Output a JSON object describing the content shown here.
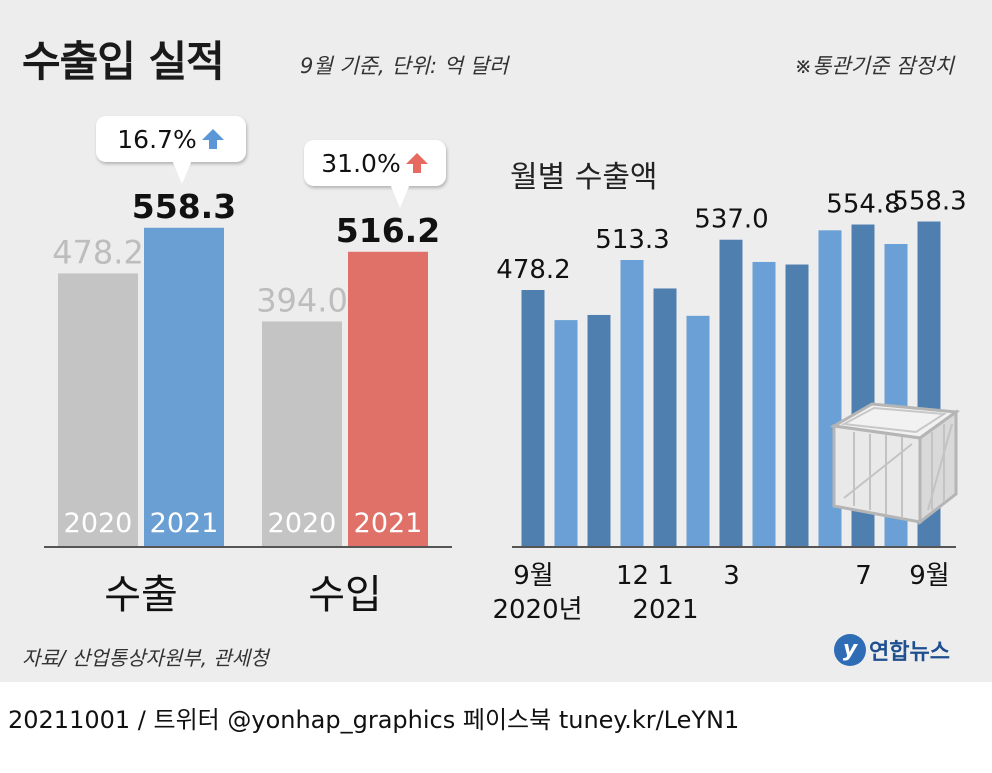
{
  "title": "수출입 실적",
  "subtitle": "9월 기준, 단위: 억 달러",
  "note": "※통관기준 잠정치",
  "source": "자료/ 산업통상자원부, 관세청",
  "footer": "20211001 / 트위터 @yonhap_graphics  페이스북 tuney.kr/LeYN1",
  "brand": {
    "mark": "y",
    "name": "연합뉴스"
  },
  "callouts": {
    "export_change": "16.7%",
    "import_change": "31.0%"
  },
  "colors": {
    "background": "#ededed",
    "prev_year_bar": "#c4c4c4",
    "export_2021": "#6a9fd4",
    "import_2021": "#e07168",
    "monthly_dark": "#4f7fae",
    "monthly_light": "#6aa0d6",
    "up_arrow_blue": "#5b97d8",
    "up_arrow_red": "#e76a60"
  },
  "monthly_title": "월별 수출액",
  "chart_data": [
    {
      "type": "bar",
      "categories": [
        "수출",
        "수입"
      ],
      "series": [
        {
          "name": "2020",
          "values": [
            478.2,
            394.0
          ]
        },
        {
          "name": "2021",
          "values": [
            558.3,
            516.2
          ]
        }
      ],
      "ylim": [
        0,
        600
      ]
    },
    {
      "type": "bar",
      "title": "월별 수출액",
      "categories": [
        "2020-09",
        "2020-10",
        "2020-11",
        "2020-12",
        "2021-01",
        "2021-02",
        "2021-03",
        "2021-04",
        "2021-05",
        "2021-06",
        "2021-07",
        "2021-08",
        "2021-09"
      ],
      "tick_labels": [
        {
          "index": 0,
          "line1": "9월",
          "line2": "2020년"
        },
        {
          "index": 3,
          "line1": "12",
          "line2": ""
        },
        {
          "index": 4,
          "line1": "1",
          "line2": "2021"
        },
        {
          "index": 6,
          "line1": "3",
          "line2": ""
        },
        {
          "index": 10,
          "line1": "7",
          "line2": ""
        },
        {
          "index": 12,
          "line1": "9월",
          "line2": ""
        }
      ],
      "values": [
        478.2,
        443.0,
        449.0,
        513.3,
        480.0,
        448.0,
        537.0,
        511.0,
        508.0,
        548.0,
        554.8,
        532.0,
        558.3
      ],
      "data_labels": [
        {
          "index": 0,
          "text": "478.2"
        },
        {
          "index": 3,
          "text": "513.3"
        },
        {
          "index": 6,
          "text": "537.0"
        },
        {
          "index": 10,
          "text": "554.8"
        },
        {
          "index": 12,
          "text": "558.3"
        }
      ],
      "ylim": [
        0,
        600
      ]
    }
  ]
}
